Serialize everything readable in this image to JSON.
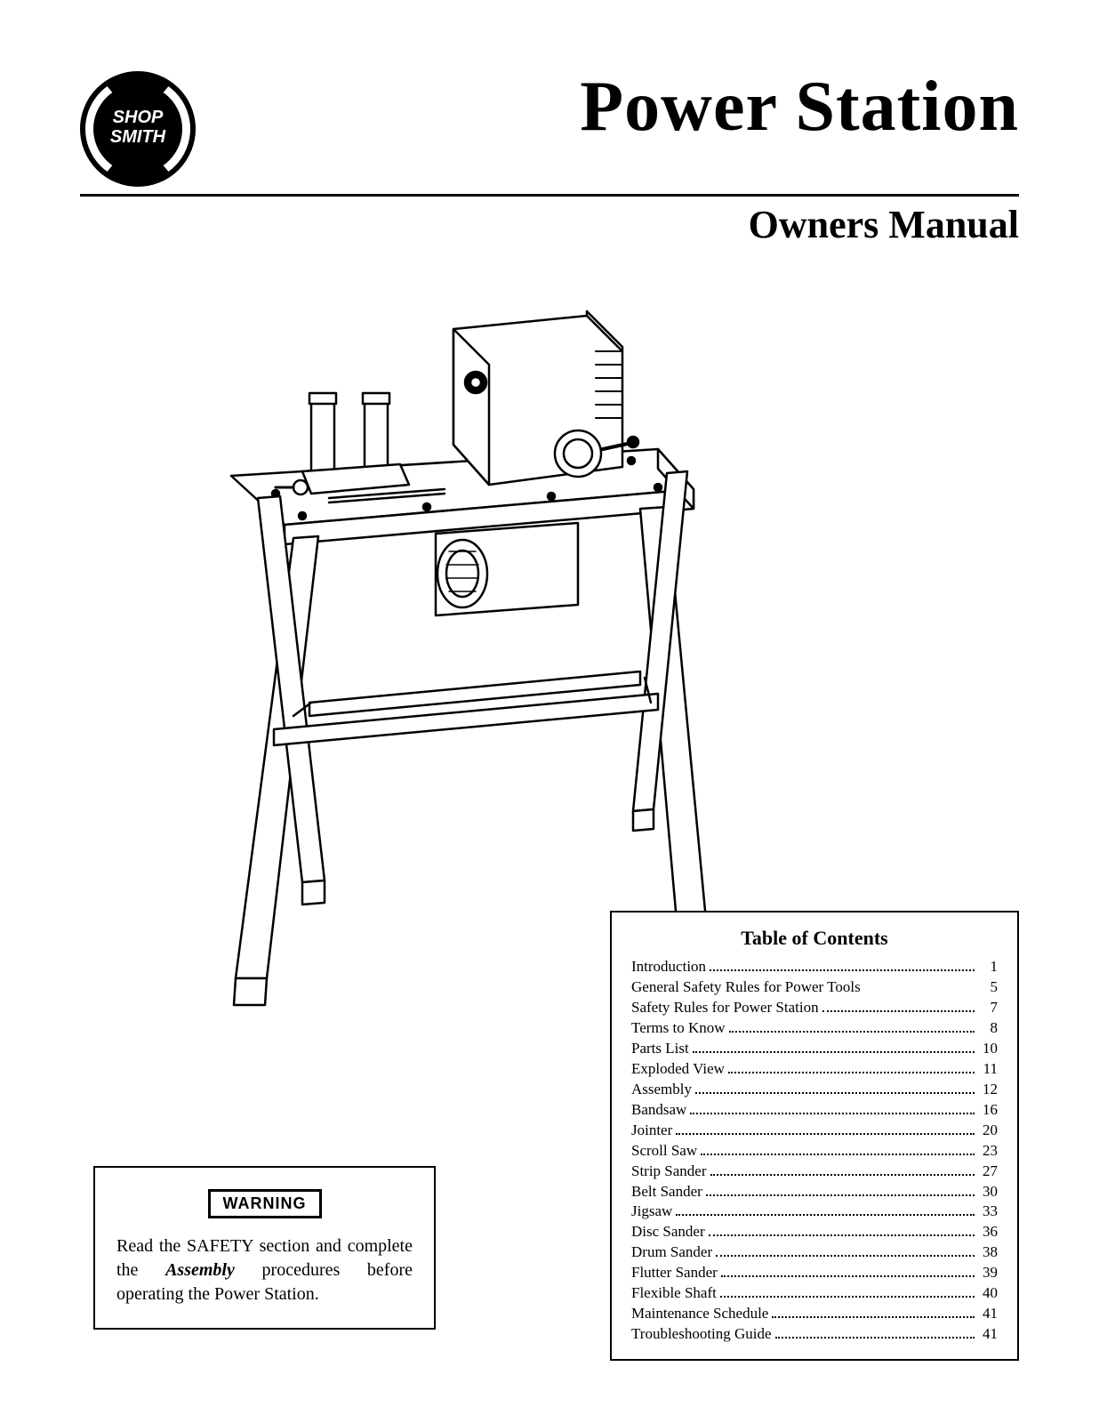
{
  "header": {
    "logo_text_top": "SHOP",
    "logo_text_bottom": "SMITH",
    "title": "Power Station",
    "subtitle": "Owners Manual"
  },
  "warning": {
    "label": "WARNING",
    "text_parts": [
      {
        "t": "Read the SAFETY section and complete the ",
        "i": false,
        "b": false
      },
      {
        "t": "Assembly",
        "i": true,
        "b": true
      },
      {
        "t": " procedures before operating the Power Station.",
        "i": false,
        "b": false
      }
    ]
  },
  "toc": {
    "title": "Table of Contents",
    "items": [
      {
        "label": "Introduction",
        "page": "1",
        "dots": true
      },
      {
        "label": "General Safety Rules for Power Tools",
        "page": "5",
        "dots": false
      },
      {
        "label": "Safety Rules for Power Station",
        "page": "7",
        "dots": true
      },
      {
        "label": "Terms to Know",
        "page": "8",
        "dots": true
      },
      {
        "label": "Parts List",
        "page": "10",
        "dots": true
      },
      {
        "label": "Exploded View",
        "page": "11",
        "dots": true
      },
      {
        "label": "Assembly",
        "page": "12",
        "dots": true
      },
      {
        "label": "Bandsaw",
        "page": "16",
        "dots": true
      },
      {
        "label": "Jointer",
        "page": "20",
        "dots": true
      },
      {
        "label": "Scroll Saw",
        "page": "23",
        "dots": true
      },
      {
        "label": "Strip Sander",
        "page": "27",
        "dots": true
      },
      {
        "label": "Belt Sander",
        "page": "30",
        "dots": true
      },
      {
        "label": "Jigsaw",
        "page": "33",
        "dots": true
      },
      {
        "label": "Disc Sander",
        "page": "36",
        "dots": true
      },
      {
        "label": "Drum Sander",
        "page": "38",
        "dots": true
      },
      {
        "label": "Flutter Sander",
        "page": "39",
        "dots": true
      },
      {
        "label": "Flexible Shaft",
        "page": "40",
        "dots": true
      },
      {
        "label": "Maintenance Schedule",
        "page": "41",
        "dots": true
      },
      {
        "label": "Troubleshooting Guide",
        "page": "41",
        "dots": true
      }
    ]
  },
  "illustration": {
    "description": "Line drawing of Power Station: a motor/headstock unit mounted on a four-legged metal stand with cross-braces.",
    "stroke": "#000000",
    "fill": "#ffffff"
  }
}
